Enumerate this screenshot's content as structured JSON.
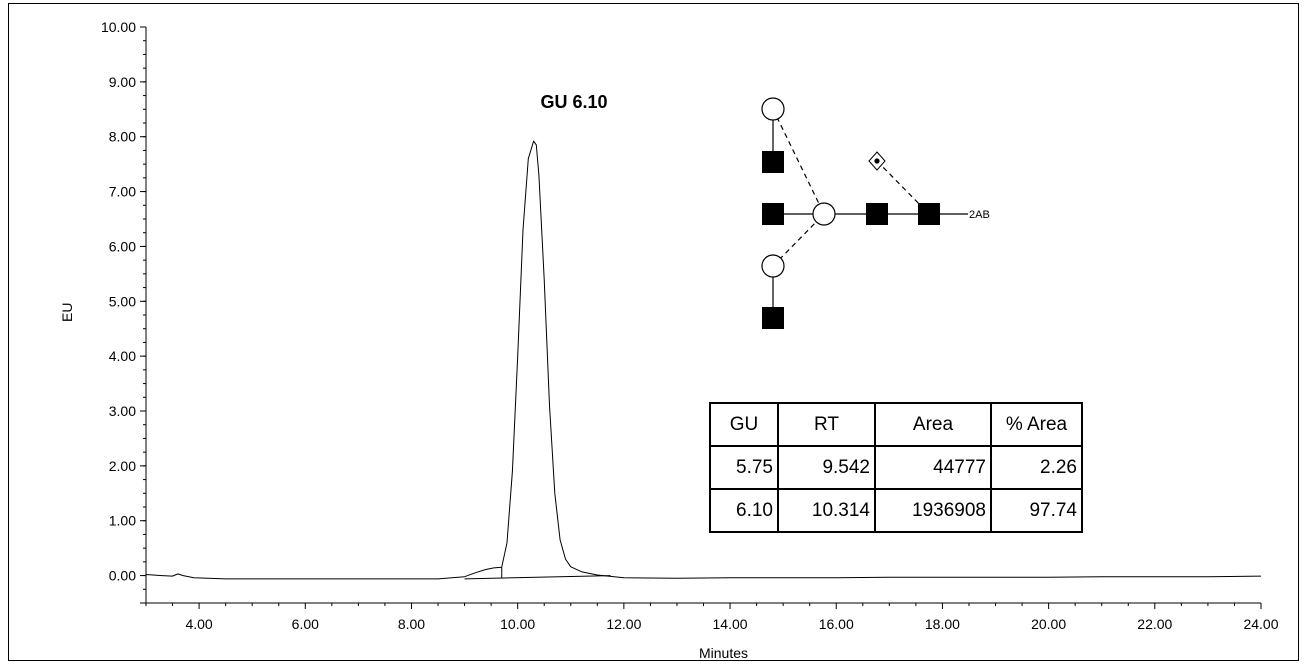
{
  "chart_data": {
    "type": "line",
    "title": "",
    "xlabel": "Minutes",
    "ylabel": "EU",
    "xlim": [
      3.0,
      24.0
    ],
    "ylim": [
      -0.5,
      10.0
    ],
    "x_ticks": [
      "4.00",
      "6.00",
      "8.00",
      "10.00",
      "12.00",
      "14.00",
      "16.00",
      "18.00",
      "20.00",
      "22.00",
      "24.00"
    ],
    "y_ticks": [
      "-0.00",
      "0.00",
      "1.00",
      "2.00",
      "3.00",
      "4.00",
      "5.00",
      "6.00",
      "7.00",
      "8.00",
      "9.00",
      "10.00"
    ],
    "grid": false,
    "series": [
      {
        "x": [
          3.0,
          3.3,
          3.5,
          3.6,
          3.7,
          3.9,
          4.5,
          5.5,
          6.5,
          7.5,
          8.5,
          9.0,
          9.2,
          9.4,
          9.55,
          9.7,
          9.8,
          9.9,
          10.0,
          10.1,
          10.2,
          10.3,
          10.35,
          10.4,
          10.5,
          10.6,
          10.7,
          10.8,
          10.9,
          11.0,
          11.2,
          11.5,
          12.0,
          13.0,
          14.0,
          15.0,
          16.0,
          17.0,
          18.0,
          19.0,
          20.0,
          21.0,
          22.0,
          23.0,
          24.0
        ],
        "y": [
          0.02,
          0.0,
          -0.01,
          0.03,
          0.0,
          -0.04,
          -0.06,
          -0.06,
          -0.06,
          -0.06,
          -0.06,
          -0.02,
          0.05,
          0.11,
          0.14,
          0.15,
          0.6,
          1.9,
          4.0,
          6.3,
          7.6,
          7.92,
          7.85,
          7.3,
          5.4,
          3.1,
          1.5,
          0.65,
          0.3,
          0.16,
          0.07,
          0.01,
          -0.04,
          -0.05,
          -0.04,
          -0.04,
          -0.04,
          -0.03,
          -0.03,
          -0.03,
          -0.03,
          -0.02,
          -0.02,
          -0.02,
          -0.01
        ]
      }
    ],
    "baseline": {
      "x": [
        9.0,
        11.75
      ],
      "y": [
        -0.06,
        0.0
      ]
    },
    "integration_drop_x": 9.7,
    "annotations": [
      {
        "text": "GU 6.10",
        "x": 10.31,
        "y": 8.5
      }
    ]
  },
  "glycan": {
    "reducing_end_label": "2AB"
  },
  "results_table": {
    "headers": [
      "GU",
      "RT",
      "Area",
      "% Area"
    ],
    "rows": [
      [
        "5.75",
        "9.542",
        "44777",
        "2.26"
      ],
      [
        "6.10",
        "10.314",
        "1936908",
        "97.74"
      ]
    ]
  }
}
